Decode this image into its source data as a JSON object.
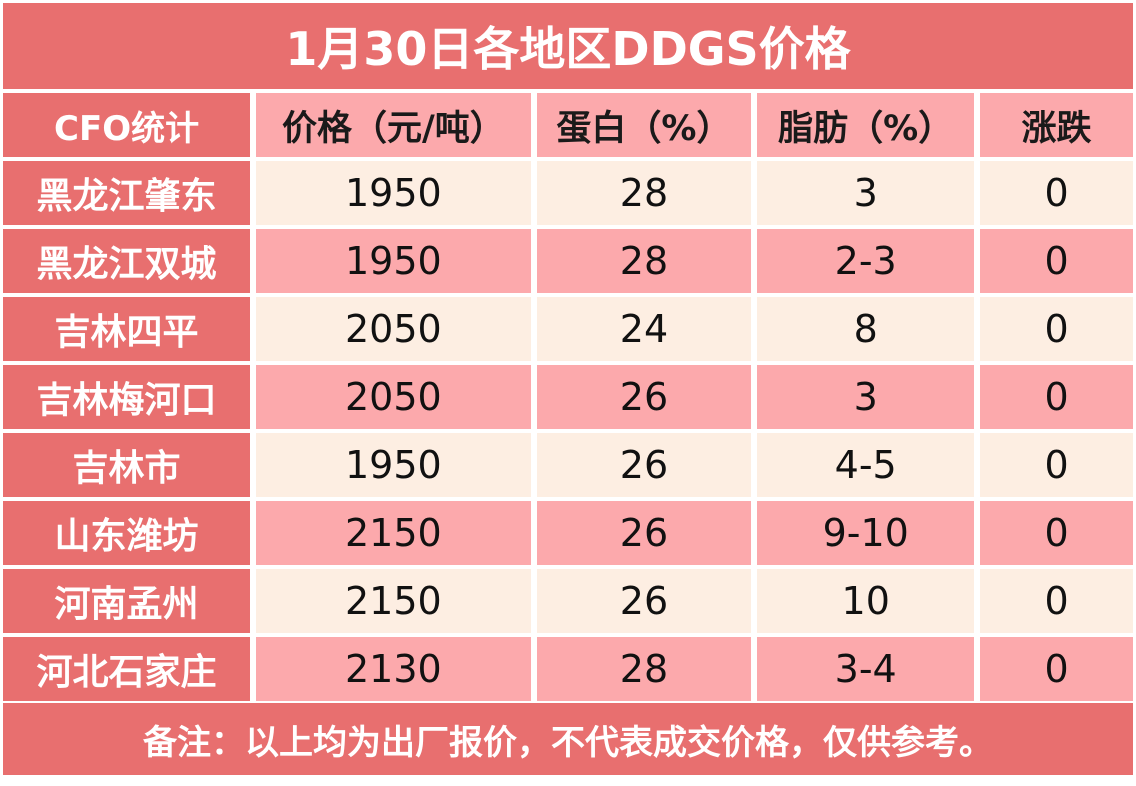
{
  "title": "1月30日各地区DDGS价格",
  "columns": {
    "region": "CFO统计",
    "price": "价格（元/吨）",
    "protein": "蛋白（%）",
    "fat": "脂肪（%）",
    "change": "涨跌"
  },
  "rows": [
    {
      "region": "黑龙江肇东",
      "price": "1950",
      "protein": "28",
      "fat": "3",
      "change": "0"
    },
    {
      "region": "黑龙江双城",
      "price": "1950",
      "protein": "28",
      "fat": "2-3",
      "change": "0"
    },
    {
      "region": "吉林四平",
      "price": "2050",
      "protein": "24",
      "fat": "8",
      "change": "0"
    },
    {
      "region": "吉林梅河口",
      "price": "2050",
      "protein": "26",
      "fat": "3",
      "change": "0"
    },
    {
      "region": "吉林市",
      "price": "1950",
      "protein": "26",
      "fat": "4-5",
      "change": "0"
    },
    {
      "region": "山东潍坊",
      "price": "2150",
      "protein": "26",
      "fat": "9-10",
      "change": "0"
    },
    {
      "region": "河南孟州",
      "price": "2150",
      "protein": "26",
      "fat": "10",
      "change": "0"
    },
    {
      "region": "河北石家庄",
      "price": "2130",
      "protein": "28",
      "fat": "3-4",
      "change": "0"
    }
  ],
  "footer": "备注：以上均为出厂报价，不代表成交价格，仅供参考。",
  "colors": {
    "header_red": "#e86f6f",
    "pink": "#fca9ac",
    "cream": "#fdeee2"
  }
}
